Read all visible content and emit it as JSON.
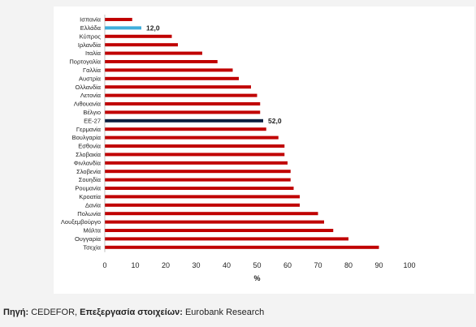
{
  "chart_data": {
    "type": "bar",
    "orientation": "horizontal",
    "xlabel": "%",
    "xlim": [
      0,
      100
    ],
    "x_ticks": [
      0,
      10,
      20,
      30,
      40,
      50,
      60,
      70,
      80,
      90,
      100
    ],
    "grid": false,
    "categories": [
      "Ισπανία",
      "Ελλάδα",
      "Κύπρος",
      "Ιρλανδία",
      "Ιταλία",
      "Πορτογαλία",
      "Γαλλία",
      "Αυστρία",
      "Ολλανδία",
      "Λετονία",
      "Λιθουανία",
      "Βέλγιο",
      "ΕΕ-27",
      "Γερμανία",
      "Βουλγαρία",
      "Εσθονία",
      "Σλοβακία",
      "Φινλανδία",
      "Σλοβενία",
      "Σουηδία",
      "Ρουμανία",
      "Κροατία",
      "Δανία",
      "Πολωνία",
      "Λουξεμβούργο",
      "Μάλτα",
      "Ουγγαρία",
      "Τσεχία"
    ],
    "values": [
      9,
      12.0,
      22,
      24,
      32,
      37,
      42,
      44,
      48,
      50,
      51,
      51,
      52.0,
      53,
      57,
      59,
      59,
      60,
      61,
      61,
      62,
      64,
      64,
      70,
      72,
      75,
      80,
      90
    ],
    "bar_colors": {
      "default": "#c00000",
      "Ελλάδα": "#40aedc",
      "ΕΕ-27": "#0d1f40"
    },
    "data_labels": {
      "Ελλάδα": "12,0",
      "ΕΕ-27": "52,0"
    }
  },
  "source": {
    "label": "Πηγή:",
    "part1": " CEDEFOR, ",
    "label2": "Επεξεργασία στοιχείων:",
    "part2": " Eurobank Research"
  }
}
